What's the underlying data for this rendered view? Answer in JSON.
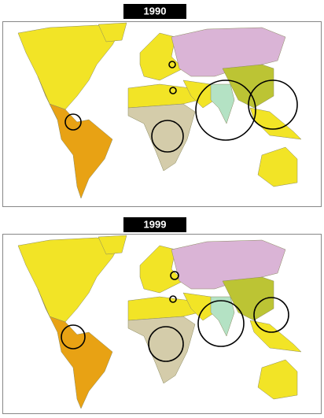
{
  "panels": [
    {
      "label": "1990"
    },
    {
      "label": "1999"
    }
  ]
}
